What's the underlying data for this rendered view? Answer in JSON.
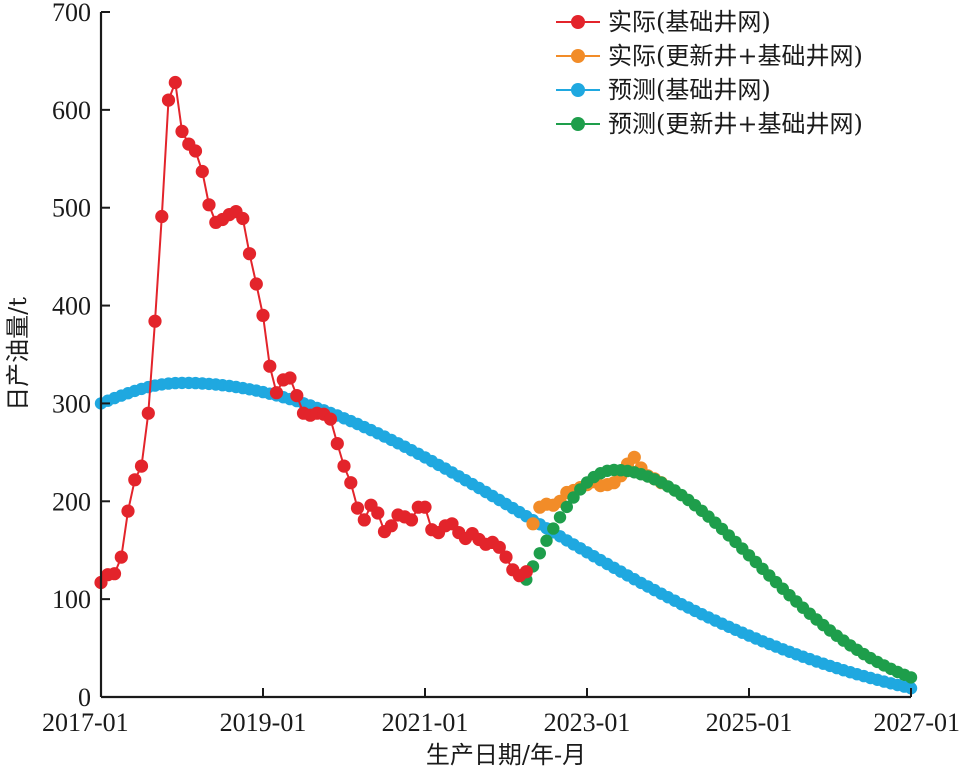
{
  "chart_data": {
    "type": "line",
    "xlabel": "生产日期/年-月",
    "ylabel": "日产油量/t",
    "x_ticks": [
      "2017-01",
      "2019-01",
      "2021-01",
      "2023-01",
      "2025-01",
      "2027-01"
    ],
    "xlim": [
      "2017-01",
      "2027-01"
    ],
    "y_ticks": [
      0,
      100,
      200,
      300,
      400,
      500,
      600,
      700
    ],
    "ylim": [
      0,
      700
    ],
    "grid": false,
    "legend_position": "top-right",
    "series": [
      {
        "name": "实际(基础井网)",
        "color": "#e3242b",
        "style": "line-marker",
        "x": [
          "2017-01",
          "2017-02",
          "2017-03",
          "2017-04",
          "2017-05",
          "2017-06",
          "2017-07",
          "2017-08",
          "2017-09",
          "2017-10",
          "2017-11",
          "2017-12",
          "2018-01",
          "2018-02",
          "2018-03",
          "2018-04",
          "2018-05",
          "2018-06",
          "2018-07",
          "2018-08",
          "2018-09",
          "2018-10",
          "2018-11",
          "2018-12",
          "2019-01",
          "2019-02",
          "2019-03",
          "2019-04",
          "2019-05",
          "2019-06",
          "2019-07",
          "2019-08",
          "2019-09",
          "2019-10",
          "2019-11",
          "2019-12",
          "2020-01",
          "2020-02",
          "2020-03",
          "2020-04",
          "2020-05",
          "2020-06",
          "2020-07",
          "2020-08",
          "2020-09",
          "2020-10",
          "2020-11",
          "2020-12",
          "2021-01",
          "2021-02",
          "2021-03",
          "2021-04",
          "2021-05",
          "2021-06",
          "2021-07",
          "2021-08",
          "2021-09",
          "2021-10",
          "2021-11",
          "2021-12",
          "2022-01",
          "2022-02",
          "2022-03",
          "2022-04"
        ],
        "y": [
          117,
          125,
          126,
          143,
          190,
          222,
          236,
          290,
          384,
          491,
          610,
          628,
          578,
          565,
          558,
          537,
          503,
          485,
          488,
          493,
          496,
          489,
          453,
          422,
          390,
          338,
          311,
          324,
          326,
          308,
          290,
          288,
          290,
          289,
          284,
          259,
          236,
          219,
          193,
          181,
          196,
          188,
          169,
          175,
          186,
          184,
          181,
          194,
          194,
          171,
          168,
          175,
          177,
          168,
          162,
          167,
          161,
          156,
          158,
          153,
          143,
          130,
          124,
          128
        ]
      },
      {
        "name": "实际(更新井+基础井网)",
        "color": "#f28c28",
        "style": "marker",
        "x": [
          "2022-05",
          "2022-06",
          "2022-07",
          "2022-08",
          "2022-09",
          "2022-10",
          "2022-11",
          "2022-12",
          "2023-01",
          "2023-02",
          "2023-03",
          "2023-04",
          "2023-05",
          "2023-06",
          "2023-07",
          "2023-08",
          "2023-09",
          "2023-10",
          "2023-11",
          "2023-12"
        ],
        "y": [
          177,
          194,
          197,
          196,
          200,
          209,
          211,
          214,
          217,
          220,
          216,
          217,
          219,
          226,
          238,
          245,
          234,
          226,
          223,
          219
        ]
      },
      {
        "name": "预测(基础井网)",
        "color": "#1fa8e0",
        "style": "marker",
        "model": {
          "peak_value": 321,
          "peak_date": "2018-01",
          "end_value": 9,
          "end_date": "2027-01",
          "start_value": 300,
          "start_date": "2017-01"
        }
      },
      {
        "name": "预测(更新井+基础井网)",
        "color": "#1e9e4b",
        "style": "marker",
        "model": {
          "start_value": 120,
          "start_date": "2022-04",
          "peak_value": 232,
          "peak_date": "2023-05",
          "end_value": 20,
          "end_date": "2027-01"
        }
      }
    ]
  }
}
